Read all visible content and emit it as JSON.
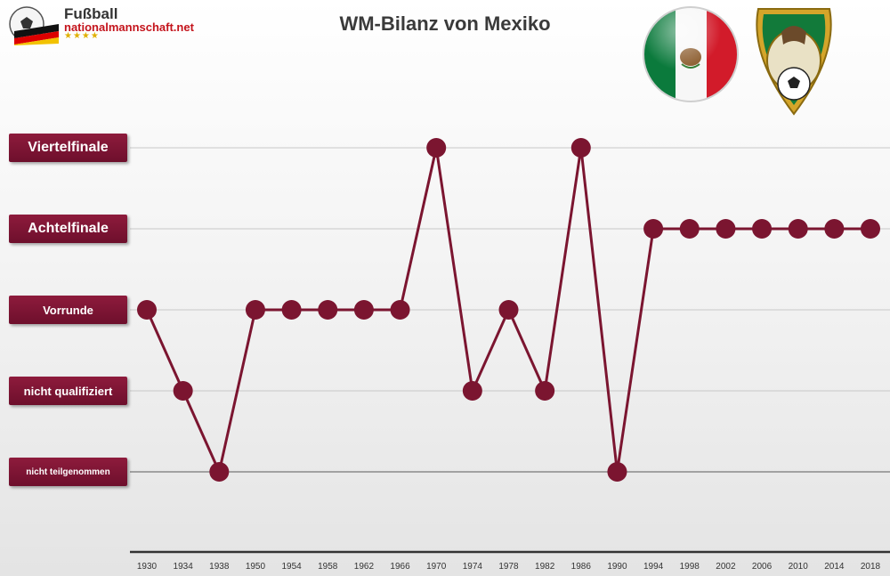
{
  "header": {
    "logo_line1": "Fußball",
    "logo_line2": "nationalmannschaft.net",
    "logo_stars": "★★★★"
  },
  "icons": {
    "flag": "mexico-flag-emblem-icon",
    "crest": "mexico-football-federation-crest-icon"
  },
  "colors": {
    "series": "#7b1530",
    "label_bg": "#7b1530",
    "grid": "#c8c8c8"
  },
  "chart_data": {
    "type": "line",
    "title": "WM-Bilanz von Mexiko",
    "levels": [
      "nicht teilgenommen",
      "nicht qualifiziert",
      "Vorrunde",
      "Achtelfinale",
      "Viertelfinale"
    ],
    "x": [
      "1930",
      "1934",
      "1938",
      "1950",
      "1954",
      "1958",
      "1962",
      "1966",
      "1970",
      "1974",
      "1978",
      "1982",
      "1986",
      "1990",
      "1994",
      "1998",
      "2002",
      "2006",
      "2010",
      "2014",
      "2018"
    ],
    "series": [
      {
        "values": [
          "Vorrunde",
          "nicht qualifiziert",
          "nicht teilgenommen",
          "Vorrunde",
          "Vorrunde",
          "Vorrunde",
          "Vorrunde",
          "Vorrunde",
          "Viertelfinale",
          "nicht qualifiziert",
          "Vorrunde",
          "nicht qualifiziert",
          "Viertelfinale",
          "nicht teilgenommen",
          "Achtelfinale",
          "Achtelfinale",
          "Achtelfinale",
          "Achtelfinale",
          "Achtelfinale",
          "Achtelfinale",
          "Achtelfinale"
        ]
      }
    ],
    "grid": true
  }
}
